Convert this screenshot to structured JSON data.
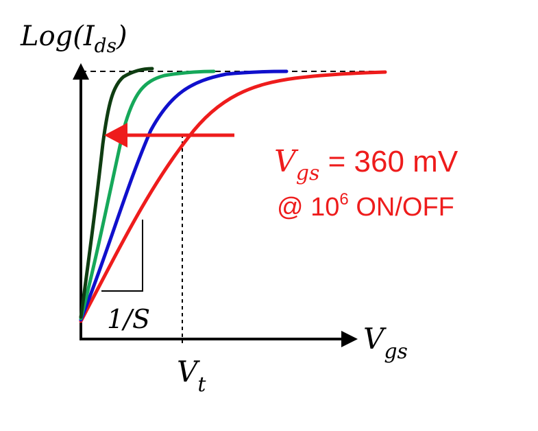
{
  "axes": {
    "y_label_main": "Log(I",
    "y_label_sub": "ds",
    "y_label_close": ")",
    "x_label_main": "V",
    "x_label_sub": "gs",
    "vt_main": "V",
    "vt_sub": "t",
    "slope_label": "1/S"
  },
  "annotation": {
    "line1_var_main": "V",
    "line1_var_sub": "gs",
    "line1_rest": " = 360 mV",
    "line2_prefix": "@ 10",
    "line2_exp": "6",
    "line2_rest": " ON/OFF",
    "color": "#ee1c1c"
  },
  "curves": [
    {
      "color": "#0f3d12"
    },
    {
      "color": "#16a85a"
    },
    {
      "color": "#1010cc"
    },
    {
      "color": "#ee1c1c"
    }
  ]
}
